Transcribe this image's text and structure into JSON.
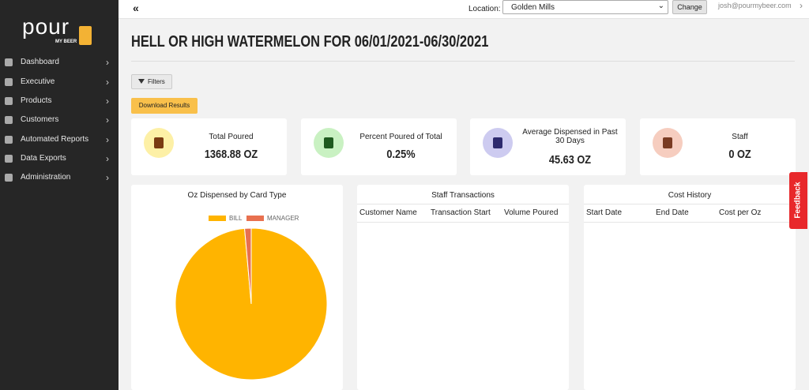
{
  "sidebar": {
    "logo": "pour",
    "logo_sub": "MY BEER",
    "menu": [
      "Dashboard",
      "Executive",
      "Products",
      "Customers",
      "Automated Reports",
      "Data Exports",
      "Administration"
    ]
  },
  "topbar": {
    "collapse": "«",
    "location_label": "Location:",
    "location": "Golden Mills",
    "change": "Change",
    "user": "josh@pourmybeer.com"
  },
  "header": {
    "title": "HELL OR HIGH WATERMELON FOR 06/01/2021-06/30/2021"
  },
  "buttons": {
    "filters": "Filters",
    "download": "Download Results"
  },
  "cards": [
    {
      "label": "Total Poured",
      "value": "1368.88 OZ"
    },
    {
      "label": "Percent Poured of Total",
      "value": "0.25%"
    },
    {
      "label": "Average Dispensed in Past 30 Days",
      "value": "45.63 OZ"
    },
    {
      "label": "Staff",
      "value": "0 OZ"
    }
  ],
  "chart_data": {
    "type": "pie",
    "title": "Oz Dispensed by Card Type",
    "categories": [
      "BILL",
      "MANAGER"
    ],
    "values": [
      98.6,
      1.4
    ],
    "colors": [
      "#ffb400",
      "#e8704f"
    ]
  },
  "staff_table": {
    "title": "Staff Transactions",
    "columns": [
      "Customer Name",
      "Transaction Start",
      "Volume Poured"
    ]
  },
  "cost_table": {
    "title": "Cost History",
    "columns": [
      "Start Date",
      "End Date",
      "Cost per Oz"
    ]
  },
  "feedback": "Feedback"
}
